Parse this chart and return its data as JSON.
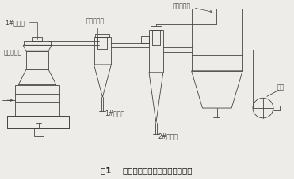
{
  "title": "图1    摆式磨粉机磨粉系统工艺流程图",
  "title_fontsize": 7.5,
  "bg_color": "#eeece8",
  "line_color": "#444444",
  "labels": {
    "fen_ji": "1#分级机",
    "mo_fen": "摆式磨粉机",
    "xuan_feng": "旋风除尘器",
    "bu_dai": "布袋除尘器",
    "chu_liao_1": "1#出料口",
    "chu_liao_2": "2#出料口",
    "feng_ji": "风机"
  },
  "font_size": 5.5
}
